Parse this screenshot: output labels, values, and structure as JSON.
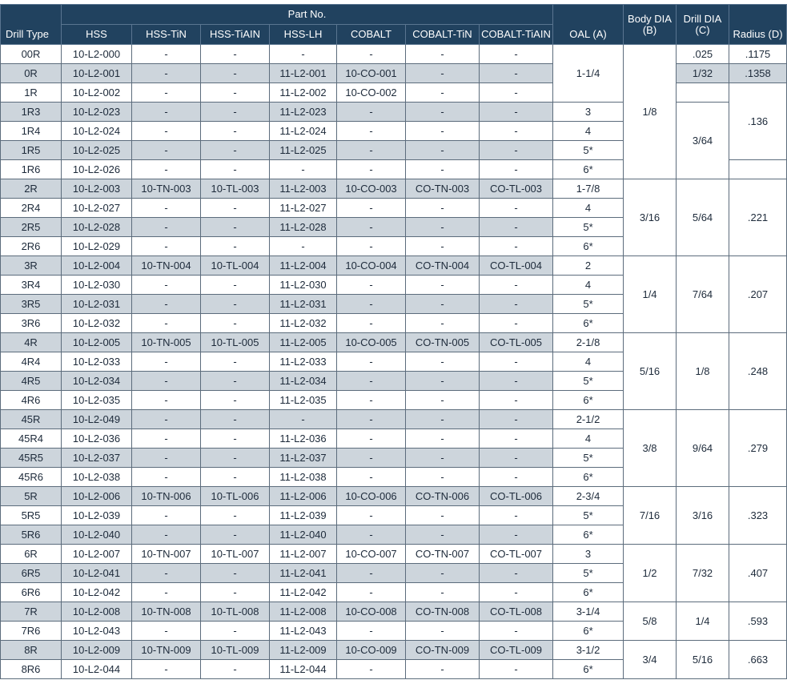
{
  "headers": {
    "part_no": "Part No.",
    "drill_type": "Drill Type",
    "hss": "HSS",
    "hss_tin": "HSS-TiN",
    "hss_tialn": "HSS-TiAIN",
    "hss_lh": "HSS-LH",
    "cobalt": "COBALT",
    "cobalt_tin": "COBALT-TiN",
    "cobalt_tialn": "COBALT-TiAIN",
    "oal": "OAL (A)",
    "body_dia": "Body DIA",
    "body_dia_sub": "(B)",
    "drill_dia": "Drill DIA",
    "drill_dia_sub": "(C)",
    "radius": "Radius (D)"
  },
  "rows": [
    {
      "type": "00R",
      "hss": "10-L2-000",
      "tin": "-",
      "tialn": "-",
      "lh": "-",
      "cobalt": "-",
      "co_tin": "-",
      "co_tialn": "-"
    },
    {
      "type": "0R",
      "hss": "10-L2-001",
      "tin": "-",
      "tialn": "-",
      "lh": "11-L2-001",
      "cobalt": "10-CO-001",
      "co_tin": "-",
      "co_tialn": "-"
    },
    {
      "type": "1R",
      "hss": "10-L2-002",
      "tin": "-",
      "tialn": "-",
      "lh": "11-L2-002",
      "cobalt": "10-CO-002",
      "co_tin": "-",
      "co_tialn": "-"
    },
    {
      "type": "1R3",
      "hss": "10-L2-023",
      "tin": "-",
      "tialn": "-",
      "lh": "11-L2-023",
      "cobalt": "-",
      "co_tin": "-",
      "co_tialn": "-"
    },
    {
      "type": "1R4",
      "hss": "10-L2-024",
      "tin": "-",
      "tialn": "-",
      "lh": "11-L2-024",
      "cobalt": "-",
      "co_tin": "-",
      "co_tialn": "-"
    },
    {
      "type": "1R5",
      "hss": "10-L2-025",
      "tin": "-",
      "tialn": "-",
      "lh": "11-L2-025",
      "cobalt": "-",
      "co_tin": "-",
      "co_tialn": "-"
    },
    {
      "type": "1R6",
      "hss": "10-L2-026",
      "tin": "-",
      "tialn": "-",
      "lh": "-",
      "cobalt": "-",
      "co_tin": "-",
      "co_tialn": "-"
    },
    {
      "type": "2R",
      "hss": "10-L2-003",
      "tin": "10-TN-003",
      "tialn": "10-TL-003",
      "lh": "11-L2-003",
      "cobalt": "10-CO-003",
      "co_tin": "CO-TN-003",
      "co_tialn": "CO-TL-003"
    },
    {
      "type": "2R4",
      "hss": "10-L2-027",
      "tin": "-",
      "tialn": "-",
      "lh": "11-L2-027",
      "cobalt": "-",
      "co_tin": "-",
      "co_tialn": "-"
    },
    {
      "type": "2R5",
      "hss": "10-L2-028",
      "tin": "-",
      "tialn": "-",
      "lh": "11-L2-028",
      "cobalt": "-",
      "co_tin": "-",
      "co_tialn": "-"
    },
    {
      "type": "2R6",
      "hss": "10-L2-029",
      "tin": "-",
      "tialn": "-",
      "lh": "-",
      "cobalt": "-",
      "co_tin": "-",
      "co_tialn": "-"
    },
    {
      "type": "3R",
      "hss": "10-L2-004",
      "tin": "10-TN-004",
      "tialn": "10-TL-004",
      "lh": "11-L2-004",
      "cobalt": "10-CO-004",
      "co_tin": "CO-TN-004",
      "co_tialn": "CO-TL-004"
    },
    {
      "type": "3R4",
      "hss": "10-L2-030",
      "tin": "-",
      "tialn": "-",
      "lh": "11-L2-030",
      "cobalt": "-",
      "co_tin": "-",
      "co_tialn": "-"
    },
    {
      "type": "3R5",
      "hss": "10-L2-031",
      "tin": "-",
      "tialn": "-",
      "lh": "11-L2-031",
      "cobalt": "-",
      "co_tin": "-",
      "co_tialn": "-"
    },
    {
      "type": "3R6",
      "hss": "10-L2-032",
      "tin": "-",
      "tialn": "-",
      "lh": "11-L2-032",
      "cobalt": "-",
      "co_tin": "-",
      "co_tialn": "-"
    },
    {
      "type": "4R",
      "hss": "10-L2-005",
      "tin": "10-TN-005",
      "tialn": "10-TL-005",
      "lh": "11-L2-005",
      "cobalt": "10-CO-005",
      "co_tin": "CO-TN-005",
      "co_tialn": "CO-TL-005"
    },
    {
      "type": "4R4",
      "hss": "10-L2-033",
      "tin": "-",
      "tialn": "-",
      "lh": "11-L2-033",
      "cobalt": "-",
      "co_tin": "-",
      "co_tialn": "-"
    },
    {
      "type": "4R5",
      "hss": "10-L2-034",
      "tin": "-",
      "tialn": "-",
      "lh": "11-L2-034",
      "cobalt": "-",
      "co_tin": "-",
      "co_tialn": "-"
    },
    {
      "type": "4R6",
      "hss": "10-L2-035",
      "tin": "-",
      "tialn": "-",
      "lh": "11-L2-035",
      "cobalt": "-",
      "co_tin": "-",
      "co_tialn": "-"
    },
    {
      "type": "45R",
      "hss": "10-L2-049",
      "tin": "-",
      "tialn": "-",
      "lh": "-",
      "cobalt": "-",
      "co_tin": "-",
      "co_tialn": "-"
    },
    {
      "type": "45R4",
      "hss": "10-L2-036",
      "tin": "-",
      "tialn": "-",
      "lh": "11-L2-036",
      "cobalt": "-",
      "co_tin": "-",
      "co_tialn": "-"
    },
    {
      "type": "45R5",
      "hss": "10-L2-037",
      "tin": "-",
      "tialn": "-",
      "lh": "11-L2-037",
      "cobalt": "-",
      "co_tin": "-",
      "co_tialn": "-"
    },
    {
      "type": "45R6",
      "hss": "10-L2-038",
      "tin": "-",
      "tialn": "-",
      "lh": "11-L2-038",
      "cobalt": "-",
      "co_tin": "-",
      "co_tialn": "-"
    },
    {
      "type": "5R",
      "hss": "10-L2-006",
      "tin": "10-TN-006",
      "tialn": "10-TL-006",
      "lh": "11-L2-006",
      "cobalt": "10-CO-006",
      "co_tin": "CO-TN-006",
      "co_tialn": "CO-TL-006"
    },
    {
      "type": "5R5",
      "hss": "10-L2-039",
      "tin": "-",
      "tialn": "-",
      "lh": "11-L2-039",
      "cobalt": "-",
      "co_tin": "-",
      "co_tialn": "-"
    },
    {
      "type": "5R6",
      "hss": "10-L2-040",
      "tin": "-",
      "tialn": "-",
      "lh": "11-L2-040",
      "cobalt": "-",
      "co_tin": "-",
      "co_tialn": "-"
    },
    {
      "type": "6R",
      "hss": "10-L2-007",
      "tin": "10-TN-007",
      "tialn": "10-TL-007",
      "lh": "11-L2-007",
      "cobalt": "10-CO-007",
      "co_tin": "CO-TN-007",
      "co_tialn": "CO-TL-007"
    },
    {
      "type": "6R5",
      "hss": "10-L2-041",
      "tin": "-",
      "tialn": "-",
      "lh": "11-L2-041",
      "cobalt": "-",
      "co_tin": "-",
      "co_tialn": "-"
    },
    {
      "type": "6R6",
      "hss": "10-L2-042",
      "tin": "-",
      "tialn": "-",
      "lh": "11-L2-042",
      "cobalt": "-",
      "co_tin": "-",
      "co_tialn": "-"
    },
    {
      "type": "7R",
      "hss": "10-L2-008",
      "tin": "10-TN-008",
      "tialn": "10-TL-008",
      "lh": "11-L2-008",
      "cobalt": "10-CO-008",
      "co_tin": "CO-TN-008",
      "co_tialn": "CO-TL-008"
    },
    {
      "type": "7R6",
      "hss": "10-L2-043",
      "tin": "-",
      "tialn": "-",
      "lh": "11-L2-043",
      "cobalt": "-",
      "co_tin": "-",
      "co_tialn": "-"
    },
    {
      "type": "8R",
      "hss": "10-L2-009",
      "tin": "10-TN-009",
      "tialn": "10-TL-009",
      "lh": "11-L2-009",
      "cobalt": "10-CO-009",
      "co_tin": "CO-TN-009",
      "co_tialn": "CO-TL-009"
    },
    {
      "type": "8R6",
      "hss": "10-L2-044",
      "tin": "-",
      "tialn": "-",
      "lh": "11-L2-044",
      "cobalt": "-",
      "co_tin": "-",
      "co_tialn": "-"
    }
  ],
  "oal": [
    "1-1/4",
    "3",
    "4",
    "5*",
    "6*",
    "1-7/8",
    "4",
    "5*",
    "6*",
    "2",
    "4",
    "5*",
    "6*",
    "2-1/8",
    "4",
    "5*",
    "6*",
    "2-1/2",
    "4",
    "5*",
    "6*",
    "2-3/4",
    "5*",
    "6*",
    "3",
    "5*",
    "6*",
    "3-1/4",
    "6*",
    "3-1/2",
    "6*"
  ],
  "body_dia": [
    "1/8",
    "3/16",
    "1/4",
    "5/16",
    "3/8",
    "7/16",
    "1/2",
    "5/8",
    "3/4"
  ],
  "drill_dia": [
    ".025",
    "1/32",
    "",
    "3/64",
    "5/64",
    "7/64",
    "1/8",
    "9/64",
    "3/16",
    "7/32",
    "1/4",
    "5/16"
  ],
  "radius": [
    ".1175",
    ".1358",
    ".136",
    "",
    ".221",
    ".207",
    ".248",
    ".279",
    ".323",
    ".407",
    ".593",
    ".663"
  ]
}
